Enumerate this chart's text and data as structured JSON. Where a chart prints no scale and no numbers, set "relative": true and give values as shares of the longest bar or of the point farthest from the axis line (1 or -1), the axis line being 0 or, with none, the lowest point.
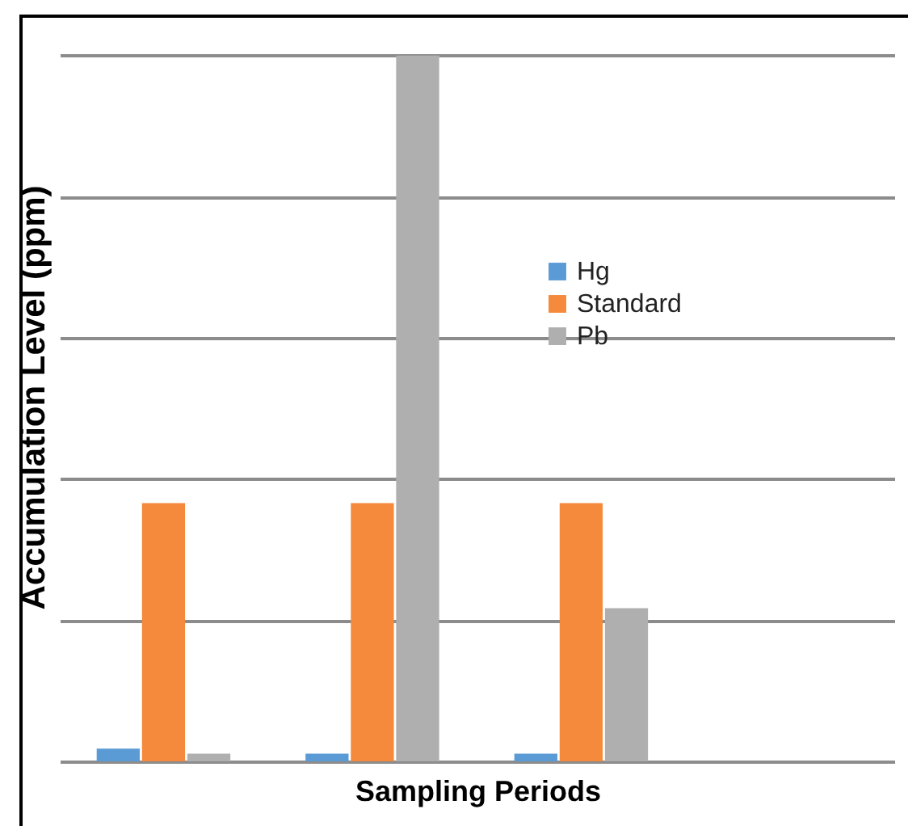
{
  "chart_data": {
    "type": "bar",
    "relative": true,
    "xlabel": "Sampling Periods",
    "ylabel": "Accumulation Level (ppm)",
    "categories": [
      null,
      null,
      null
    ],
    "series": [
      {
        "name": "Hg",
        "color": "#5b9bd5",
        "values": [
          0.018,
          0.011,
          0.011
        ]
      },
      {
        "name": "Standard",
        "color": "#f58a3c",
        "values": [
          0.366,
          0.366,
          0.366
        ]
      },
      {
        "name": "Pb",
        "color": "#afafaf",
        "values": [
          0.011,
          1,
          0.217
        ]
      }
    ],
    "grid": "y",
    "legend": "right"
  }
}
